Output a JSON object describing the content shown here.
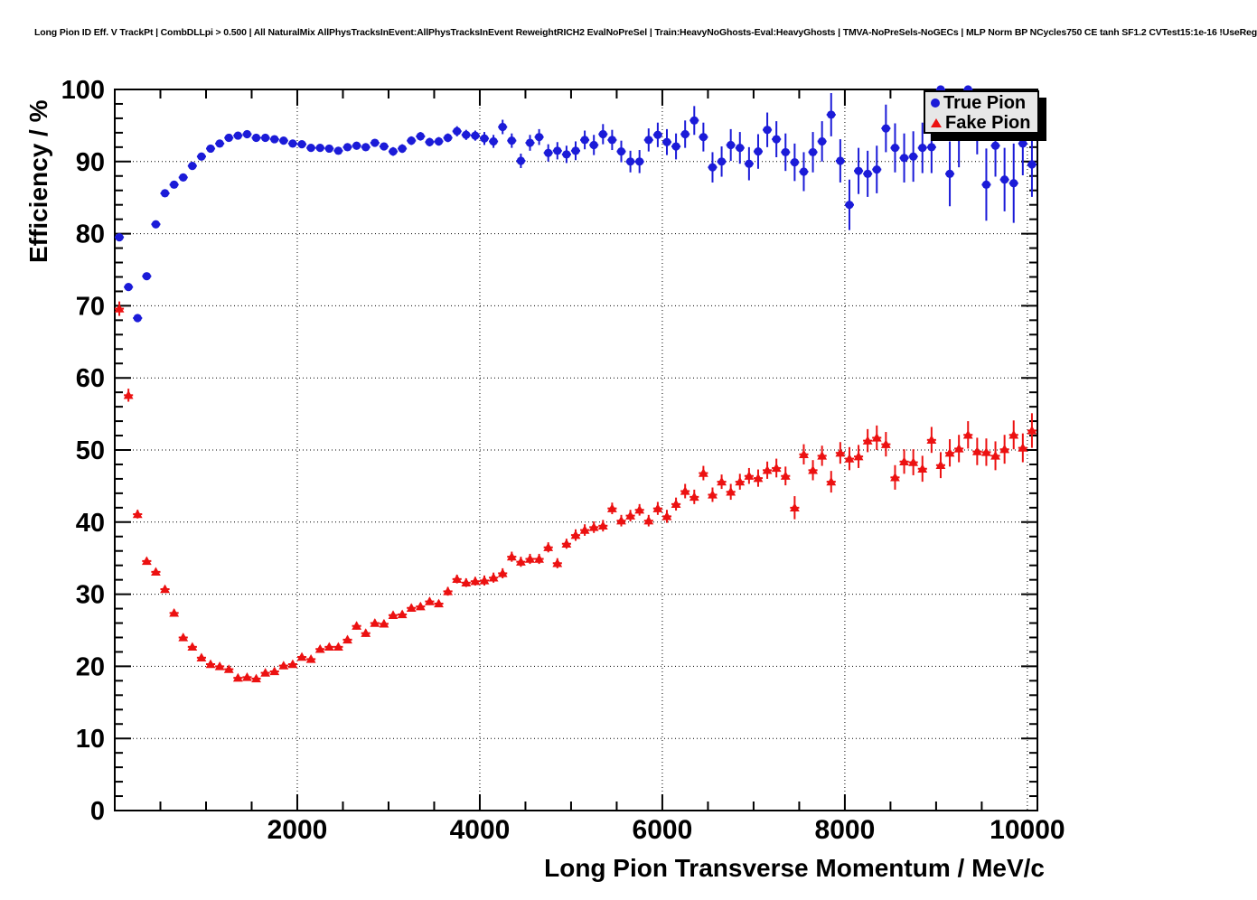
{
  "title": "Long Pion ID Eff. V TrackPt | CombDLLpi > 0.500 | All NaturalMix AllPhysTracksInEvent:AllPhysTracksInEvent ReweightRICH2 EvalNoPreSel | Train:HeavyNoGhosts-Eval:HeavyGhosts | TMVA-NoPreSels-NoGECs | MLP Norm BP NCycles750 CE tanh SF1.2 CVTest15:1e-16 !UseReg",
  "legend": {
    "items": [
      {
        "label": "True Pion",
        "marker": "circle",
        "color": "#1b1bd8"
      },
      {
        "label": "Fake Pion",
        "marker": "triangle-up",
        "color": "#ec1111"
      }
    ]
  },
  "chart_data": {
    "type": "scatter",
    "title": "Long Pion ID Eff. V TrackPt | CombDLLpi > 0.500 | All NaturalMix AllPhysTracksInEvent:AllPhysTracksInEvent ReweightRICH2 EvalNoPreSel | Train:HeavyNoGhosts-Eval:HeavyGhosts | TMVA-NoPreSels-NoGECs | MLP Norm BP NCycles750 CE tanh SF1.2 CVTest15:1e-16 !UseReg",
    "xlabel": "Long Pion Transverse Momentum / MeV/c",
    "ylabel": "Efficiency / %",
    "xlim": [
      0,
      10110
    ],
    "ylim": [
      0,
      100
    ],
    "x_major_ticks": [
      2000,
      4000,
      6000,
      8000,
      10000
    ],
    "x_minor_step": 500,
    "y_major_ticks": [
      0,
      10,
      20,
      30,
      40,
      50,
      60,
      70,
      80,
      90,
      100
    ],
    "y_minor_step": 2,
    "grid": "dotted-at-major-ticks",
    "legend_position": "top-right",
    "bin_half_width": 50,
    "series": [
      {
        "name": "True Pion",
        "marker": "circle",
        "color": "#1b1bd8",
        "x": [
          50,
          150,
          250,
          350,
          450,
          550,
          650,
          750,
          850,
          950,
          1050,
          1150,
          1250,
          1350,
          1450,
          1550,
          1650,
          1750,
          1850,
          1950,
          2050,
          2150,
          2250,
          2350,
          2450,
          2550,
          2650,
          2750,
          2850,
          2950,
          3050,
          3150,
          3250,
          3350,
          3450,
          3550,
          3650,
          3750,
          3850,
          3950,
          4050,
          4150,
          4250,
          4350,
          4450,
          4550,
          4650,
          4750,
          4850,
          4950,
          5050,
          5150,
          5250,
          5350,
          5450,
          5550,
          5650,
          5750,
          5850,
          5950,
          6050,
          6150,
          6250,
          6350,
          6450,
          6550,
          6650,
          6750,
          6850,
          6950,
          7050,
          7150,
          7250,
          7350,
          7450,
          7550,
          7650,
          7750,
          7850,
          7950,
          8050,
          8150,
          8250,
          8350,
          8450,
          8550,
          8650,
          8750,
          8850,
          8950,
          9050,
          9150,
          9250,
          9350,
          9450,
          9550,
          9650,
          9750,
          9850,
          9950,
          10050
        ],
        "y": [
          79.5,
          72.6,
          68.3,
          74.1,
          81.3,
          85.6,
          86.8,
          87.8,
          89.4,
          90.7,
          91.8,
          92.5,
          93.3,
          93.6,
          93.8,
          93.3,
          93.3,
          93.1,
          92.9,
          92.5,
          92.4,
          91.9,
          91.9,
          91.8,
          91.5,
          92.0,
          92.2,
          92.0,
          92.6,
          92.1,
          91.4,
          91.8,
          92.9,
          93.5,
          92.7,
          92.8,
          93.3,
          94.2,
          93.7,
          93.6,
          93.2,
          92.8,
          94.8,
          92.9,
          90.1,
          92.6,
          93.4,
          91.2,
          91.5,
          91.0,
          91.5,
          93.0,
          92.3,
          93.8,
          93.0,
          91.4,
          90.0,
          90.0,
          93.0,
          93.7,
          92.7,
          92.1,
          93.8,
          95.7,
          93.4,
          89.2,
          90.0,
          92.3,
          91.9,
          89.7,
          91.4,
          94.4,
          93.1,
          91.3,
          89.9,
          88.6,
          91.3,
          92.8,
          96.5,
          90.1,
          84.0,
          88.7,
          88.3,
          88.9,
          94.6,
          91.9,
          90.5,
          90.7,
          91.9,
          92.0,
          100.0,
          88.3,
          93.4,
          100.0,
          94.5,
          86.8,
          92.2,
          87.5,
          87.0,
          92.5,
          89.6
        ],
        "yerr": [
          0.5,
          0.5,
          0.5,
          0.4,
          0.4,
          0.4,
          0.4,
          0.4,
          0.4,
          0.4,
          0.4,
          0.4,
          0.4,
          0.4,
          0.4,
          0.4,
          0.4,
          0.4,
          0.4,
          0.4,
          0.5,
          0.5,
          0.5,
          0.5,
          0.5,
          0.5,
          0.5,
          0.5,
          0.5,
          0.5,
          0.6,
          0.6,
          0.6,
          0.6,
          0.6,
          0.6,
          0.6,
          0.7,
          0.7,
          0.7,
          0.9,
          0.9,
          1.0,
          1.0,
          1.0,
          1.1,
          1.1,
          1.2,
          1.2,
          1.2,
          1.3,
          1.3,
          1.4,
          1.4,
          1.4,
          1.5,
          1.5,
          1.6,
          1.6,
          1.7,
          1.8,
          1.8,
          1.9,
          2.0,
          2.0,
          2.1,
          2.1,
          2.2,
          2.2,
          2.3,
          2.4,
          2.4,
          2.5,
          2.6,
          2.6,
          2.7,
          2.8,
          2.8,
          3.0,
          3.0,
          3.5,
          3.2,
          3.2,
          3.3,
          3.3,
          3.4,
          3.4,
          3.5,
          3.5,
          3.6,
          4.0,
          4.5,
          4.2,
          4.0,
          3.5,
          5.0,
          4.3,
          4.4,
          5.5,
          4.4,
          4.5
        ]
      },
      {
        "name": "Fake Pion",
        "marker": "triangle-up",
        "color": "#ec1111",
        "x": [
          50,
          150,
          250,
          350,
          450,
          550,
          650,
          750,
          850,
          950,
          1050,
          1150,
          1250,
          1350,
          1450,
          1550,
          1650,
          1750,
          1850,
          1950,
          2050,
          2150,
          2250,
          2350,
          2450,
          2550,
          2650,
          2750,
          2850,
          2950,
          3050,
          3150,
          3250,
          3350,
          3450,
          3550,
          3650,
          3750,
          3850,
          3950,
          4050,
          4150,
          4250,
          4350,
          4450,
          4550,
          4650,
          4750,
          4850,
          4950,
          5050,
          5150,
          5250,
          5350,
          5450,
          5550,
          5650,
          5750,
          5850,
          5950,
          6050,
          6150,
          6250,
          6350,
          6450,
          6550,
          6650,
          6750,
          6850,
          6950,
          7050,
          7150,
          7250,
          7350,
          7450,
          7550,
          7650,
          7750,
          7850,
          7950,
          8050,
          8150,
          8250,
          8350,
          8450,
          8550,
          8650,
          8750,
          8850,
          8950,
          9050,
          9150,
          9250,
          9350,
          9450,
          9550,
          9650,
          9750,
          9850,
          9950,
          10050
        ],
        "y": [
          69.6,
          57.6,
          41.1,
          34.6,
          33.1,
          30.7,
          27.4,
          24.0,
          22.7,
          21.2,
          20.3,
          20.0,
          19.6,
          18.4,
          18.5,
          18.3,
          19.1,
          19.3,
          20.1,
          20.3,
          21.3,
          21.0,
          22.4,
          22.7,
          22.7,
          23.7,
          25.6,
          24.6,
          26.0,
          25.9,
          27.1,
          27.2,
          28.1,
          28.3,
          29.0,
          28.7,
          30.4,
          32.1,
          31.6,
          31.8,
          31.9,
          32.3,
          32.9,
          35.2,
          34.5,
          34.9,
          34.9,
          36.5,
          34.3,
          37.0,
          38.2,
          38.9,
          39.3,
          39.5,
          41.9,
          40.2,
          40.9,
          41.7,
          40.2,
          41.9,
          40.8,
          42.5,
          44.3,
          43.5,
          46.8,
          43.8,
          45.6,
          44.2,
          45.6,
          46.4,
          46.1,
          47.2,
          47.5,
          46.4,
          42.0,
          49.4,
          47.2,
          49.2,
          45.6,
          49.6,
          48.8,
          49.1,
          51.3,
          51.7,
          50.8,
          46.2,
          48.4,
          48.3,
          47.4,
          51.4,
          47.9,
          49.6,
          50.2,
          52.1,
          49.8,
          49.7,
          49.2,
          50.1,
          52.1,
          50.3,
          52.7
        ],
        "yerr": [
          1.0,
          0.9,
          0.6,
          0.5,
          0.5,
          0.5,
          0.5,
          0.5,
          0.4,
          0.4,
          0.4,
          0.4,
          0.4,
          0.4,
          0.4,
          0.4,
          0.4,
          0.4,
          0.4,
          0.4,
          0.4,
          0.4,
          0.4,
          0.4,
          0.4,
          0.5,
          0.5,
          0.5,
          0.5,
          0.5,
          0.5,
          0.5,
          0.5,
          0.5,
          0.5,
          0.5,
          0.6,
          0.6,
          0.6,
          0.6,
          0.7,
          0.7,
          0.7,
          0.7,
          0.7,
          0.7,
          0.7,
          0.7,
          0.7,
          0.7,
          0.8,
          0.8,
          0.8,
          0.8,
          0.8,
          0.8,
          0.8,
          0.8,
          0.8,
          0.9,
          0.9,
          0.9,
          1.0,
          1.0,
          1.0,
          1.0,
          1.0,
          1.1,
          1.1,
          1.1,
          1.2,
          1.2,
          1.3,
          1.3,
          1.6,
          1.4,
          1.4,
          1.4,
          1.5,
          1.5,
          1.6,
          1.6,
          1.6,
          1.7,
          1.7,
          1.7,
          1.7,
          1.8,
          1.8,
          1.8,
          1.8,
          1.9,
          1.9,
          1.9,
          1.9,
          1.9,
          2.0,
          2.0,
          2.0,
          2.0,
          2.4
        ]
      }
    ]
  }
}
